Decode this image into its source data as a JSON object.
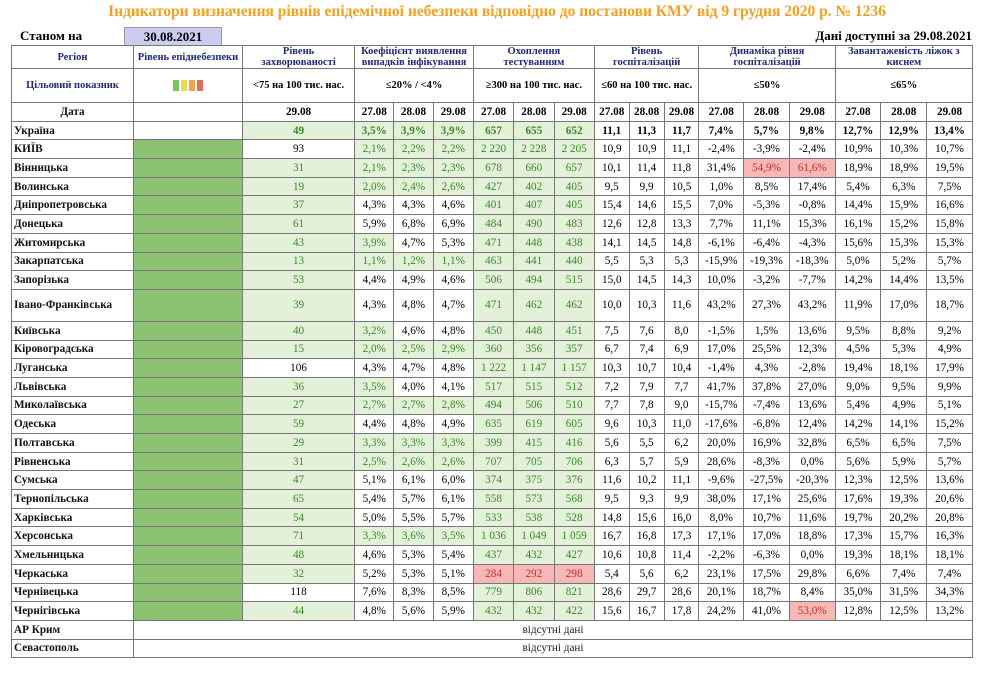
{
  "title": "Індикатори визначення рівнів епідемічної небезпеки відповідно до постанови КМУ від 9 грудня 2020 р. № 1236",
  "as_of_label": "Станом на",
  "as_of_date": "30.08.2021",
  "data_available": "Дані доступні за  29.08.2021",
  "headers": {
    "region": "Регіон",
    "danger_level": "Рівень епіднебезпеки",
    "incidence": "Рівень захворюваності",
    "detection": "Коефіцієнт виявлення випадків інфікування",
    "testing": "Охоплення тестуванням",
    "hosp": "Рівень госпіталізацій",
    "hosp_dyn": "Динаміка рівня госпіталізацій",
    "o2_load": "Завантаженість ліжок з киснем",
    "target_label": "Цільовий показник",
    "t_incidence": "<75 на 100 тис. нас.",
    "t_detection": "≤20% / <4%",
    "t_testing": "≥300 на 100 тис. нас.",
    "t_hosp": "≤60 на 100 тис. нас.",
    "t_hosp_dyn": "≤50%",
    "t_o2": "≤65%",
    "date_label": "Дата",
    "dates": [
      "29.08",
      "27.08",
      "28.08",
      "29.08",
      "27.08",
      "28.08",
      "29.08",
      "27.08",
      "28.08",
      "29.08",
      "27.08",
      "28.08",
      "29.08",
      "27.08",
      "28.08",
      "29.08"
    ]
  },
  "level_bar_colors": [
    "#7fc15e",
    "#f3d64e",
    "#f5a347",
    "#e56a5a"
  ],
  "rows": [
    {
      "region": "Україна",
      "incidence": "49",
      "detection": [
        "3,5%",
        "3,9%",
        "3,9%"
      ],
      "testing": [
        "657",
        "655",
        "652"
      ],
      "hosp": [
        "11,1",
        "11,3",
        "11,7"
      ],
      "hosp_dyn": [
        "7,4%",
        "5,7%",
        "9,8%"
      ],
      "o2": [
        "12,7%",
        "12,9%",
        "13,4%"
      ]
    },
    {
      "region": "КИЇВ",
      "incidence": "93",
      "detection": [
        "2,1%",
        "2,2%",
        "2,2%"
      ],
      "testing": [
        "2 220",
        "2 228",
        "2 205"
      ],
      "hosp": [
        "10,9",
        "10,9",
        "11,1"
      ],
      "hosp_dyn": [
        "-2,4%",
        "-3,9%",
        "-2,4%"
      ],
      "o2": [
        "10,9%",
        "10,3%",
        "10,7%"
      ]
    },
    {
      "region": "Вінницька",
      "incidence": "31",
      "detection": [
        "2,1%",
        "2,3%",
        "2,3%"
      ],
      "testing": [
        "678",
        "660",
        "657"
      ],
      "hosp": [
        "10,1",
        "11,4",
        "11,8"
      ],
      "hosp_dyn": [
        "31,4%",
        "54,9%",
        "61,6%"
      ],
      "o2": [
        "18,9%",
        "18,9%",
        "19,5%"
      ]
    },
    {
      "region": "Волинська",
      "incidence": "19",
      "detection": [
        "2,0%",
        "2,4%",
        "2,6%"
      ],
      "testing": [
        "427",
        "402",
        "405"
      ],
      "hosp": [
        "9,5",
        "9,9",
        "10,5"
      ],
      "hosp_dyn": [
        "1,0%",
        "8,5%",
        "17,4%"
      ],
      "o2": [
        "5,4%",
        "6,3%",
        "7,5%"
      ]
    },
    {
      "region": "Дніпропетровська",
      "incidence": "37",
      "detection": [
        "4,3%",
        "4,3%",
        "4,6%"
      ],
      "testing": [
        "401",
        "407",
        "405"
      ],
      "hosp": [
        "15,4",
        "14,6",
        "15,5"
      ],
      "hosp_dyn": [
        "7,0%",
        "-5,3%",
        "-0,8%"
      ],
      "o2": [
        "14,4%",
        "15,9%",
        "16,6%"
      ]
    },
    {
      "region": "Донецька",
      "incidence": "61",
      "detection": [
        "5,9%",
        "6,8%",
        "6,9%"
      ],
      "testing": [
        "484",
        "490",
        "483"
      ],
      "hosp": [
        "12,6",
        "12,8",
        "13,3"
      ],
      "hosp_dyn": [
        "7,7%",
        "11,1%",
        "15,3%"
      ],
      "o2": [
        "16,1%",
        "15,2%",
        "15,8%"
      ]
    },
    {
      "region": "Житомирська",
      "incidence": "43",
      "detection": [
        "3,9%",
        "4,7%",
        "5,3%"
      ],
      "testing": [
        "471",
        "448",
        "438"
      ],
      "hosp": [
        "14,1",
        "14,5",
        "14,8"
      ],
      "hosp_dyn": [
        "-6,1%",
        "-6,4%",
        "-4,3%"
      ],
      "o2": [
        "15,6%",
        "15,3%",
        "15,3%"
      ]
    },
    {
      "region": "Закарпатська",
      "incidence": "13",
      "detection": [
        "1,1%",
        "1,2%",
        "1,1%"
      ],
      "testing": [
        "463",
        "441",
        "440"
      ],
      "hosp": [
        "5,5",
        "5,3",
        "5,3"
      ],
      "hosp_dyn": [
        "-15,9%",
        "-19,3%",
        "-18,3%"
      ],
      "o2": [
        "5,0%",
        "5,2%",
        "5,7%"
      ]
    },
    {
      "region": "Запорізька",
      "incidence": "53",
      "detection": [
        "4,4%",
        "4,9%",
        "4,6%"
      ],
      "testing": [
        "506",
        "494",
        "515"
      ],
      "hosp": [
        "15,0",
        "14,5",
        "14,3"
      ],
      "hosp_dyn": [
        "10,0%",
        "-3,2%",
        "-7,7%"
      ],
      "o2": [
        "14,2%",
        "14,4%",
        "13,5%"
      ]
    },
    {
      "region": "Івано-Франківська",
      "incidence": "39",
      "detection": [
        "4,3%",
        "4,8%",
        "4,7%"
      ],
      "testing": [
        "471",
        "462",
        "462"
      ],
      "hosp": [
        "10,0",
        "10,3",
        "11,6"
      ],
      "hosp_dyn": [
        "43,2%",
        "27,3%",
        "43,2%"
      ],
      "o2": [
        "11,9%",
        "17,0%",
        "18,7%"
      ]
    },
    {
      "region": "Київська",
      "incidence": "40",
      "detection": [
        "3,2%",
        "4,6%",
        "4,8%"
      ],
      "testing": [
        "450",
        "448",
        "451"
      ],
      "hosp": [
        "7,5",
        "7,6",
        "8,0"
      ],
      "hosp_dyn": [
        "-1,5%",
        "1,5%",
        "13,6%"
      ],
      "o2": [
        "9,5%",
        "8,8%",
        "9,2%"
      ]
    },
    {
      "region": "Кіровоградська",
      "incidence": "15",
      "detection": [
        "2,0%",
        "2,5%",
        "2,9%"
      ],
      "testing": [
        "360",
        "356",
        "357"
      ],
      "hosp": [
        "6,7",
        "7,4",
        "6,9"
      ],
      "hosp_dyn": [
        "17,0%",
        "25,5%",
        "12,3%"
      ],
      "o2": [
        "4,5%",
        "5,3%",
        "4,9%"
      ]
    },
    {
      "region": "Луганська",
      "incidence": "106",
      "detection": [
        "4,3%",
        "4,7%",
        "4,8%"
      ],
      "testing": [
        "1 222",
        "1 147",
        "1 157"
      ],
      "hosp": [
        "10,3",
        "10,7",
        "10,4"
      ],
      "hosp_dyn": [
        "-1,4%",
        "4,3%",
        "-2,8%"
      ],
      "o2": [
        "19,4%",
        "18,1%",
        "17,9%"
      ]
    },
    {
      "region": "Львівська",
      "incidence": "36",
      "detection": [
        "3,5%",
        "4,0%",
        "4,1%"
      ],
      "testing": [
        "517",
        "515",
        "512"
      ],
      "hosp": [
        "7,2",
        "7,9",
        "7,7"
      ],
      "hosp_dyn": [
        "41,7%",
        "37,8%",
        "27,0%"
      ],
      "o2": [
        "9,0%",
        "9,5%",
        "9,9%"
      ]
    },
    {
      "region": "Миколаївська",
      "incidence": "27",
      "detection": [
        "2,7%",
        "2,7%",
        "2,8%"
      ],
      "testing": [
        "494",
        "506",
        "510"
      ],
      "hosp": [
        "7,7",
        "7,8",
        "9,0"
      ],
      "hosp_dyn": [
        "-15,7%",
        "-7,4%",
        "13,6%"
      ],
      "o2": [
        "5,4%",
        "4,9%",
        "5,1%"
      ]
    },
    {
      "region": "Одеська",
      "incidence": "59",
      "detection": [
        "4,4%",
        "4,8%",
        "4,9%"
      ],
      "testing": [
        "635",
        "619",
        "605"
      ],
      "hosp": [
        "9,6",
        "10,3",
        "11,0"
      ],
      "hosp_dyn": [
        "-17,6%",
        "-6,8%",
        "12,4%"
      ],
      "o2": [
        "14,2%",
        "14,1%",
        "15,2%"
      ]
    },
    {
      "region": "Полтавська",
      "incidence": "29",
      "detection": [
        "3,3%",
        "3,3%",
        "3,3%"
      ],
      "testing": [
        "399",
        "415",
        "416"
      ],
      "hosp": [
        "5,6",
        "5,5",
        "6,2"
      ],
      "hosp_dyn": [
        "20,0%",
        "16,9%",
        "32,8%"
      ],
      "o2": [
        "6,5%",
        "6,5%",
        "7,5%"
      ]
    },
    {
      "region": "Рівненська",
      "incidence": "31",
      "detection": [
        "2,5%",
        "2,6%",
        "2,6%"
      ],
      "testing": [
        "707",
        "705",
        "706"
      ],
      "hosp": [
        "6,3",
        "5,7",
        "5,9"
      ],
      "hosp_dyn": [
        "28,6%",
        "-8,3%",
        "0,0%"
      ],
      "o2": [
        "5,6%",
        "5,9%",
        "5,7%"
      ]
    },
    {
      "region": "Сумська",
      "incidence": "47",
      "detection": [
        "5,1%",
        "6,1%",
        "6,0%"
      ],
      "testing": [
        "374",
        "375",
        "376"
      ],
      "hosp": [
        "11,6",
        "10,2",
        "11,1"
      ],
      "hosp_dyn": [
        "-9,6%",
        "-27,5%",
        "-20,3%"
      ],
      "o2": [
        "12,3%",
        "12,5%",
        "13,6%"
      ]
    },
    {
      "region": "Тернопільська",
      "incidence": "65",
      "detection": [
        "5,4%",
        "5,7%",
        "6,1%"
      ],
      "testing": [
        "558",
        "573",
        "568"
      ],
      "hosp": [
        "9,5",
        "9,3",
        "9,9"
      ],
      "hosp_dyn": [
        "38,0%",
        "17,1%",
        "25,6%"
      ],
      "o2": [
        "17,6%",
        "19,3%",
        "20,6%"
      ]
    },
    {
      "region": "Харківська",
      "incidence": "54",
      "detection": [
        "5,0%",
        "5,5%",
        "5,7%"
      ],
      "testing": [
        "533",
        "538",
        "528"
      ],
      "hosp": [
        "14,8",
        "15,6",
        "16,0"
      ],
      "hosp_dyn": [
        "8,0%",
        "10,7%",
        "11,6%"
      ],
      "o2": [
        "19,7%",
        "20,2%",
        "20,8%"
      ]
    },
    {
      "region": "Херсонська",
      "incidence": "71",
      "detection": [
        "3,3%",
        "3,6%",
        "3,5%"
      ],
      "testing": [
        "1 036",
        "1 049",
        "1 059"
      ],
      "hosp": [
        "16,7",
        "16,8",
        "17,3"
      ],
      "hosp_dyn": [
        "17,1%",
        "17,0%",
        "18,8%"
      ],
      "o2": [
        "17,3%",
        "15,7%",
        "16,3%"
      ]
    },
    {
      "region": "Хмельницька",
      "incidence": "48",
      "detection": [
        "4,6%",
        "5,3%",
        "5,4%"
      ],
      "testing": [
        "437",
        "432",
        "427"
      ],
      "hosp": [
        "10,6",
        "10,8",
        "11,4"
      ],
      "hosp_dyn": [
        "-2,2%",
        "-6,3%",
        "0,0%"
      ],
      "o2": [
        "19,3%",
        "18,1%",
        "18,1%"
      ]
    },
    {
      "region": "Черкаська",
      "incidence": "32",
      "detection": [
        "5,2%",
        "5,3%",
        "5,1%"
      ],
      "testing": [
        "284",
        "292",
        "298"
      ],
      "hosp": [
        "5,4",
        "5,6",
        "6,2"
      ],
      "hosp_dyn": [
        "23,1%",
        "17,5%",
        "29,8%"
      ],
      "o2": [
        "6,6%",
        "7,4%",
        "7,4%"
      ]
    },
    {
      "region": "Чернівецька",
      "incidence": "118",
      "detection": [
        "7,6%",
        "8,3%",
        "8,5%"
      ],
      "testing": [
        "779",
        "806",
        "821"
      ],
      "hosp": [
        "28,6",
        "29,7",
        "28,6"
      ],
      "hosp_dyn": [
        "20,1%",
        "18,7%",
        "8,4%"
      ],
      "o2": [
        "35,0%",
        "31,5%",
        "34,3%"
      ]
    },
    {
      "region": "Чернігівська",
      "incidence": "44",
      "detection": [
        "4,8%",
        "5,6%",
        "5,9%"
      ],
      "testing": [
        "432",
        "432",
        "422"
      ],
      "hosp": [
        "15,6",
        "16,7",
        "17,8"
      ],
      "hosp_dyn": [
        "24,2%",
        "41,0%",
        "53,0%"
      ],
      "o2": [
        "12,8%",
        "12,5%",
        "13,2%"
      ]
    },
    {
      "region": "АР Крим",
      "nodata": "відсутні дані"
    },
    {
      "region": "Севастополь",
      "nodata": "відсутні дані"
    }
  ]
}
